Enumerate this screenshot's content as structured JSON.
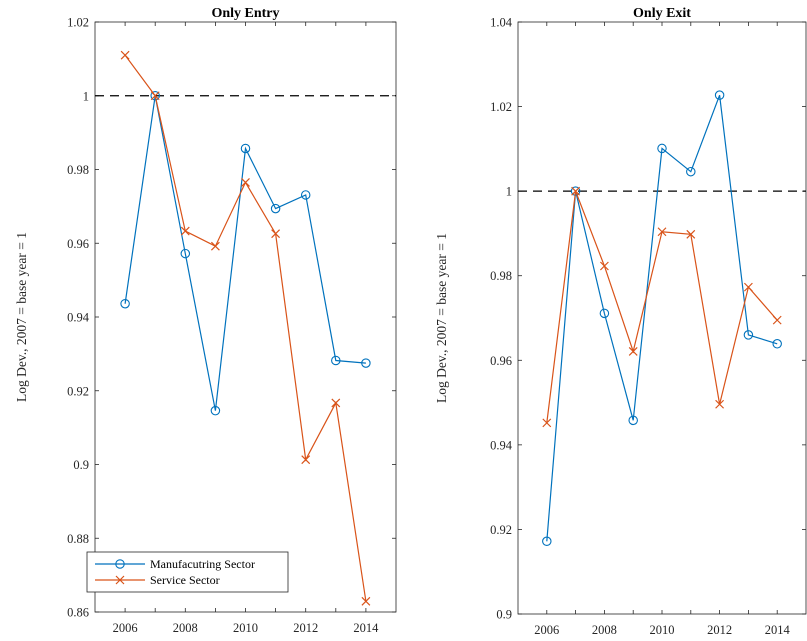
{
  "chart_data": [
    {
      "type": "line",
      "title": "Only Entry",
      "xlabel": "",
      "ylabel": "Log Dev., 2007 = base year = 1",
      "xlim": [
        2005,
        2015
      ],
      "ylim": [
        0.86,
        1.02
      ],
      "x_ticks": [
        2006,
        2008,
        2010,
        2012,
        2014
      ],
      "y_ticks": [
        0.86,
        0.88,
        0.9,
        0.92,
        0.94,
        0.96,
        0.98,
        1,
        1.02
      ],
      "y_tick_labels": [
        "0.86",
        "0.88",
        "0.9",
        "0.92",
        "0.94",
        "0.96",
        "0.98",
        "1",
        "1.02"
      ],
      "reference_line": 1,
      "grid": false,
      "legend_position": "bottom-left",
      "x": [
        2006,
        2007,
        2008,
        2009,
        2010,
        2011,
        2012,
        2013,
        2014
      ],
      "series": [
        {
          "name": "Manufacutring Sector",
          "marker": "circle",
          "color": "#0072BD",
          "values": [
            0.9436,
            1.0,
            0.9572,
            0.9146,
            0.9857,
            0.9694,
            0.9731,
            0.9282,
            0.9275
          ]
        },
        {
          "name": "Service Sector",
          "marker": "x",
          "color": "#D95319",
          "values": [
            1.011,
            1.0,
            0.9633,
            0.9592,
            0.9765,
            0.9626,
            0.9013,
            0.9167,
            0.8629
          ]
        }
      ]
    },
    {
      "type": "line",
      "title": "Only Exit",
      "xlabel": "",
      "ylabel": "Log Dev., 2007 = base year = 1",
      "xlim": [
        2005,
        2015
      ],
      "ylim": [
        0.9,
        1.04
      ],
      "x_ticks": [
        2006,
        2008,
        2010,
        2012,
        2014
      ],
      "y_ticks": [
        0.9,
        0.92,
        0.94,
        0.96,
        0.98,
        1,
        1.02,
        1.04
      ],
      "y_tick_labels": [
        "0.9",
        "0.92",
        "0.94",
        "0.96",
        "0.98",
        "1",
        "1.02",
        "1.04"
      ],
      "reference_line": 1,
      "grid": false,
      "x": [
        2006,
        2007,
        2008,
        2009,
        2010,
        2011,
        2012,
        2013,
        2014
      ],
      "series": [
        {
          "name": "Manufacutring Sector",
          "marker": "circle",
          "color": "#0072BD",
          "values": [
            0.9172,
            1.0,
            0.9711,
            0.9458,
            1.0101,
            1.0046,
            1.0227,
            0.966,
            0.9639
          ]
        },
        {
          "name": "Service Sector",
          "marker": "x",
          "color": "#D95319",
          "values": [
            0.9452,
            1.0,
            0.9823,
            0.9621,
            0.9904,
            0.9898,
            0.9496,
            0.9773,
            0.9695
          ]
        }
      ]
    }
  ]
}
